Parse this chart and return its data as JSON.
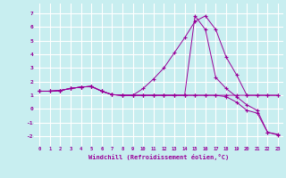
{
  "xlabel": "Windchill (Refroidissement éolien,°C)",
  "background_color": "#c8eef0",
  "line_color": "#990099",
  "grid_color": "#ffffff",
  "xlim": [
    -0.5,
    23.5
  ],
  "ylim": [
    -2.7,
    7.7
  ],
  "xticks": [
    0,
    1,
    2,
    3,
    4,
    5,
    6,
    7,
    8,
    9,
    10,
    11,
    12,
    13,
    14,
    15,
    16,
    17,
    18,
    19,
    20,
    21,
    22,
    23
  ],
  "yticks": [
    -2,
    -1,
    0,
    1,
    2,
    3,
    4,
    5,
    6,
    7
  ],
  "curves": [
    {
      "x": [
        0,
        1,
        2,
        3,
        4,
        5,
        6,
        7,
        8,
        9,
        10,
        11,
        12,
        13,
        14,
        15,
        16,
        17,
        18,
        19,
        20,
        21,
        22,
        23
      ],
      "y": [
        1.3,
        1.3,
        1.35,
        1.5,
        1.6,
        1.65,
        1.3,
        1.05,
        1.0,
        1.0,
        1.0,
        1.0,
        1.0,
        1.0,
        1.0,
        1.0,
        1.0,
        1.0,
        1.0,
        1.0,
        1.0,
        1.0,
        1.0,
        1.0
      ]
    },
    {
      "x": [
        0,
        1,
        2,
        3,
        4,
        5,
        6,
        7,
        8,
        9,
        10,
        11,
        12,
        13,
        14,
        15,
        16,
        17,
        18,
        19,
        20,
        21,
        22,
        23
      ],
      "y": [
        1.3,
        1.3,
        1.35,
        1.5,
        1.6,
        1.65,
        1.3,
        1.05,
        1.0,
        1.0,
        1.5,
        2.2,
        3.0,
        4.1,
        5.2,
        6.4,
        6.8,
        5.8,
        3.8,
        2.5,
        1.0,
        1.0,
        1.0,
        1.0
      ]
    },
    {
      "x": [
        0,
        1,
        2,
        3,
        4,
        5,
        6,
        7,
        8,
        9,
        10,
        11,
        12,
        13,
        14,
        15,
        16,
        17,
        18,
        19,
        20,
        21,
        22,
        23
      ],
      "y": [
        1.3,
        1.3,
        1.35,
        1.5,
        1.6,
        1.65,
        1.3,
        1.05,
        1.0,
        1.0,
        1.0,
        1.0,
        1.0,
        1.0,
        1.0,
        1.0,
        1.0,
        1.0,
        0.9,
        0.5,
        -0.1,
        -0.3,
        -1.7,
        -1.85
      ]
    },
    {
      "x": [
        0,
        1,
        2,
        3,
        4,
        5,
        6,
        7,
        8,
        9,
        10,
        11,
        12,
        13,
        14,
        15,
        16,
        17,
        18,
        19,
        20,
        21,
        22,
        23
      ],
      "y": [
        1.3,
        1.3,
        1.35,
        1.5,
        1.6,
        1.65,
        1.3,
        1.05,
        1.0,
        1.0,
        1.0,
        1.0,
        1.0,
        1.0,
        1.0,
        6.8,
        5.8,
        2.3,
        1.5,
        0.9,
        0.3,
        -0.1,
        -1.7,
        -1.9
      ]
    }
  ]
}
